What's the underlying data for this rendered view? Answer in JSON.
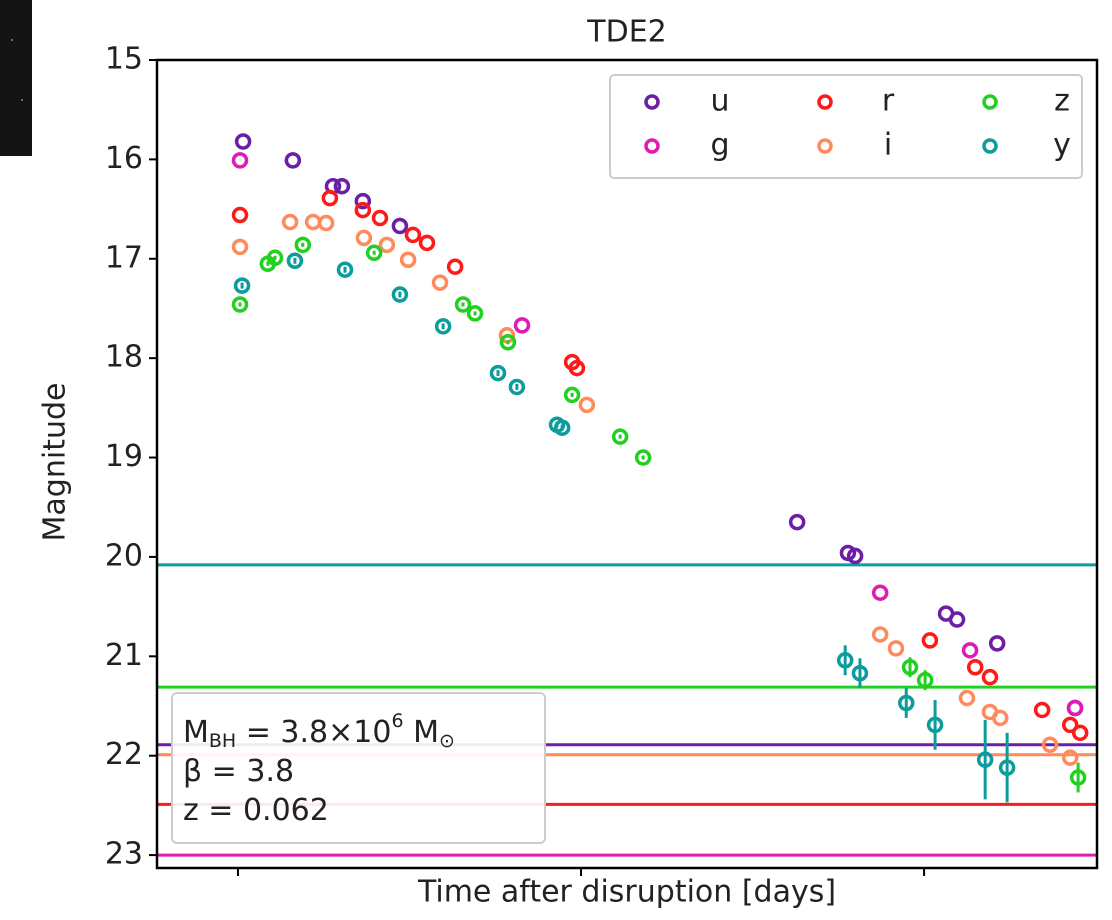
{
  "chart_data": {
    "type": "scatter",
    "title": "TDE2",
    "xlabel": "Time after disruption [days]",
    "ylabel": "Magnitude",
    "xlim": [
      -23.6,
      250.4
    ],
    "xticks": [
      0,
      100,
      200
    ],
    "show_xtick_labels": false,
    "ylim": [
      23.13,
      15
    ],
    "yticks": [
      15,
      16,
      17,
      18,
      19,
      20,
      21,
      22,
      23
    ],
    "legend": "upper right",
    "legend_columns": 3,
    "series": [
      {
        "name": "u",
        "color": "#6b1fa6",
        "x": [
          1.5,
          16.0,
          27.7,
          30.3,
          36.4,
          47.2,
          163.0,
          177.8,
          179.9,
          206.4,
          209.6,
          221.3,
          244.0
        ],
        "values": [
          15.82,
          16.01,
          16.27,
          16.27,
          16.42,
          16.67,
          19.65,
          19.96,
          19.99,
          20.57,
          20.63,
          20.87,
          21.52
        ],
        "limit": 21.89
      },
      {
        "name": "g",
        "color": "#e01ab4",
        "x": [
          0.6,
          82.8,
          187.2,
          213.4,
          244.0
        ],
        "values": [
          16.01,
          17.67,
          20.36,
          20.94,
          21.52
        ],
        "limit": 23.0
      },
      {
        "name": "r",
        "color": "#ff1a1a",
        "x": [
          0.6,
          26.8,
          36.4,
          41.4,
          51.0,
          55.1,
          63.3,
          97.4,
          98.8,
          201.7,
          214.9,
          219.2,
          234.4,
          242.6,
          245.5
        ],
        "values": [
          16.56,
          16.39,
          16.51,
          16.59,
          16.76,
          16.84,
          17.08,
          18.04,
          18.1,
          20.84,
          21.11,
          21.21,
          21.54,
          21.69,
          21.77
        ],
        "limit": 22.49
      },
      {
        "name": "i",
        "color": "#ff8a5c",
        "x": [
          0.6,
          15.2,
          21.9,
          25.7,
          36.7,
          43.4,
          49.6,
          58.9,
          78.4,
          101.7,
          187.2,
          191.8,
          212.5,
          219.2,
          222.2,
          236.7,
          242.6
        ],
        "values": [
          16.88,
          16.63,
          16.63,
          16.64,
          16.79,
          16.86,
          17.01,
          17.24,
          17.77,
          18.47,
          20.78,
          20.92,
          21.42,
          21.56,
          21.62,
          21.89,
          22.02
        ],
        "limit": 21.99
      },
      {
        "name": "z",
        "color": "#22d022",
        "x": [
          0.6,
          8.7,
          10.8,
          18.9,
          39.7,
          65.6,
          69.1,
          78.7,
          97.4,
          111.4,
          118.1,
          195.9,
          200.3,
          244.9
        ],
        "values": [
          17.46,
          17.05,
          16.99,
          16.86,
          16.94,
          17.46,
          17.55,
          17.84,
          18.37,
          18.79,
          19.0,
          21.11,
          21.24,
          22.22
        ],
        "errors": [
          0.02,
          0.02,
          0.02,
          0.02,
          0.02,
          0.02,
          0.02,
          0.02,
          0.02,
          0.02,
          0.02,
          0.1,
          0.1,
          0.15
        ],
        "limit": 21.31
      },
      {
        "name": "y",
        "color": "#0c9c9c",
        "x": [
          1.2,
          16.6,
          31.2,
          47.2,
          59.8,
          75.8,
          81.3,
          93.0,
          94.5,
          177.0,
          181.3,
          194.8,
          203.2,
          217.8,
          224.2
        ],
        "values": [
          17.27,
          17.02,
          17.11,
          17.36,
          17.68,
          18.15,
          18.29,
          18.67,
          18.7,
          21.04,
          21.17,
          21.47,
          21.69,
          22.04,
          22.12
        ],
        "errors": [
          0.03,
          0.03,
          0.03,
          0.03,
          0.03,
          0.03,
          0.03,
          0.03,
          0.03,
          0.15,
          0.15,
          0.15,
          0.25,
          0.4,
          0.35
        ],
        "limit": 20.08
      }
    ],
    "annotation": {
      "lines": [
        [
          {
            "text": "M"
          },
          {
            "text": "BH",
            "sub": true
          },
          {
            "text": " = 3.8×10"
          },
          {
            "text": "6",
            "sup": true
          },
          {
            "text": " M"
          },
          {
            "text": "⊙",
            "sub": true
          }
        ],
        [
          {
            "text": "β = 3.8"
          }
        ],
        [
          {
            "text": "z = 0.062"
          }
        ]
      ]
    }
  }
}
